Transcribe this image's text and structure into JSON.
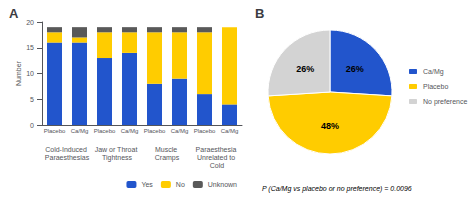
{
  "chart_data": [
    {
      "type": "bar",
      "title": "A",
      "stacked": true,
      "categories": [
        "Placebo",
        "Ca/Mg",
        "Placebo",
        "Ca/Mg",
        "Placebo",
        "Ca/Mg",
        "Placebo",
        "Ca/Mg"
      ],
      "groups": [
        "Cold-Induced Paraesthesias",
        "Jaw or Throat Tightness",
        "Muscle Cramps",
        "Paraesthesia Unrelated to Cold"
      ],
      "series": [
        {
          "name": "Yes",
          "color": "#2255CC",
          "values": [
            16,
            16,
            13,
            14,
            8,
            9,
            6,
            4
          ]
        },
        {
          "name": "No",
          "color": "#FFCC00",
          "values": [
            2,
            1,
            5,
            4,
            10,
            9,
            12,
            15
          ]
        },
        {
          "name": "Unknown",
          "color": "#595959",
          "values": [
            1,
            2,
            1,
            1,
            1,
            1,
            1,
            0
          ]
        }
      ],
      "ylabel": "Number",
      "ylim": [
        0,
        20
      ],
      "yticks": [
        0,
        5,
        10,
        15,
        20
      ],
      "grid": false,
      "legend": "lower right"
    },
    {
      "type": "pie",
      "title": "B",
      "categories": [
        "Ca/Mg",
        "Placebo",
        "No preference"
      ],
      "values": [
        26,
        48,
        26
      ],
      "value_labels": [
        "26%",
        "48%",
        "26%"
      ],
      "colors": [
        "#2255CC",
        "#FFCC00",
        "#D3D3D3"
      ],
      "data_labels": true,
      "legend": "right",
      "annotation": "P (Ca/Mg vs placebo or no preference) = 0.0096"
    }
  ]
}
